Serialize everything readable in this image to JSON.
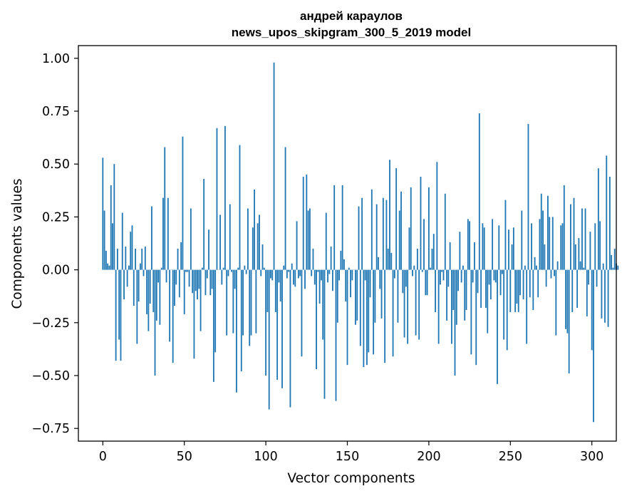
{
  "chart_data": {
    "type": "bar",
    "title_line1": "андрей караулов",
    "title_line2": "news_upos_skipgram_300_5_2019 model",
    "xlabel": "Vector components",
    "ylabel": "Components values",
    "xlim": [
      -15,
      315
    ],
    "ylim": [
      -0.81,
      1.06
    ],
    "xticks": [
      0,
      50,
      100,
      150,
      200,
      250,
      300
    ],
    "xtick_labels": [
      "0",
      "50",
      "100",
      "150",
      "200",
      "250",
      "300"
    ],
    "yticks": [
      -0.75,
      -0.5,
      -0.25,
      0.0,
      0.25,
      0.5,
      0.75,
      1.0
    ],
    "ytick_labels": [
      "−0.75",
      "−0.50",
      "−0.25",
      "0.00",
      "0.25",
      "0.50",
      "0.75",
      "1.00"
    ],
    "grid": false,
    "bar_color": "#1f77b4",
    "values": [
      0.53,
      0.28,
      0.09,
      0.03,
      0.02,
      0.4,
      0.22,
      0.5,
      -0.43,
      0.1,
      -0.33,
      -0.43,
      0.27,
      -0.14,
      0.11,
      -0.08,
      0.02,
      0.18,
      0.21,
      -0.17,
      0.1,
      -0.35,
      -0.15,
      0.03,
      0.1,
      -0.03,
      0.11,
      -0.21,
      -0.29,
      -0.16,
      0.3,
      -0.2,
      -0.5,
      -0.24,
      -0.06,
      -0.26,
      0.01,
      0.34,
      0.58,
      -0.06,
      0.34,
      -0.34,
      0.0,
      -0.44,
      -0.17,
      -0.07,
      0.1,
      -0.13,
      0.13,
      0.63,
      -0.21,
      -0.01,
      -0.01,
      -0.08,
      0.29,
      -0.11,
      -0.42,
      -0.1,
      -0.14,
      -0.09,
      -0.29,
      0.01,
      0.43,
      -0.12,
      -0.04,
      0.19,
      -0.12,
      -0.09,
      -0.53,
      -0.39,
      0.67,
      0.0,
      0.26,
      -0.07,
      0.01,
      0.68,
      -0.31,
      -0.03,
      0.31,
      -0.01,
      -0.3,
      -0.09,
      -0.58,
      0.01,
      0.59,
      -0.48,
      -0.31,
      0.02,
      -0.02,
      0.29,
      -0.36,
      -0.31,
      0.2,
      0.38,
      -0.3,
      0.22,
      0.26,
      -0.03,
      0.12,
      0.01,
      -0.5,
      -0.2,
      -0.66,
      -0.04,
      -0.05,
      0.98,
      -0.2,
      -0.52,
      -0.06,
      -0.15,
      -0.56,
      0.02,
      0.58,
      -0.04,
      -0.01,
      -0.65,
      0.03,
      -0.07,
      -0.08,
      0.23,
      -0.04,
      -0.03,
      -0.41,
      0.44,
      -0.09,
      0.45,
      0.28,
      0.29,
      -0.03,
      0.1,
      -0.07,
      -0.47,
      -0.01,
      -0.16,
      -0.05,
      -0.33,
      -0.61,
      0.27,
      -0.06,
      -0.02,
      0.11,
      -0.1,
      0.4,
      -0.62,
      -0.25,
      -0.05,
      0.09,
      0.4,
      0.05,
      -0.15,
      -0.45,
      0.01,
      -0.13,
      -0.05,
      0.0,
      -0.26,
      -0.24,
      0.3,
      -0.36,
      0.34,
      -0.46,
      -0.05,
      -0.45,
      -0.39,
      -0.13,
      0.38,
      -0.4,
      -0.25,
      0.31,
      0.06,
      -0.09,
      -0.23,
      0.34,
      -0.44,
      0.33,
      0.1,
      0.52,
      0.08,
      -0.41,
      -0.04,
      0.48,
      -0.25,
      0.28,
      0.37,
      -0.11,
      -0.32,
      -0.08,
      -0.35,
      0.2,
      0.39,
      -0.03,
      0.02,
      -0.31,
      0.1,
      -0.33,
      0.44,
      -0.01,
      0.24,
      -0.12,
      -0.12,
      0.39,
      0.01,
      0.1,
      0.17,
      -0.2,
      0.51,
      -0.35,
      -0.07,
      -0.01,
      -0.05,
      0.36,
      -0.24,
      -0.08,
      0.13,
      -0.35,
      -0.19,
      -0.5,
      -0.26,
      -0.1,
      0.18,
      -0.06,
      0.02,
      -0.24,
      -0.19,
      0.24,
      0.23,
      -0.4,
      -0.06,
      0.13,
      -0.45,
      -0.11,
      0.74,
      -0.18,
      0.22,
      0.2,
      -0.18,
      -0.3,
      -0.07,
      -0.14,
      0.24,
      -0.05,
      -0.06,
      -0.54,
      0.21,
      -0.12,
      -0.02,
      -0.33,
      0.33,
      -0.38,
      0.19,
      -0.2,
      0.12,
      0.2,
      -0.2,
      -0.16,
      -0.2,
      -0.12,
      0.28,
      -0.14,
      0.02,
      -0.35,
      0.69,
      -0.13,
      0.22,
      -0.19,
      0.06,
      0.02,
      -0.13,
      0.24,
      0.36,
      0.28,
      0.12,
      -0.08,
      0.35,
      0.25,
      -0.04,
      0.25,
      -0.03,
      -0.31,
      0.04,
      0.0,
      0.21,
      0.22,
      0.4,
      -0.28,
      -0.3,
      -0.49,
      0.31,
      -0.2,
      0.34,
      0.12,
      -0.18,
      0.15,
      0.04,
      0.29,
      0.01,
      0.29,
      -0.22,
      -0.07,
      0.18,
      -0.38,
      -0.72,
      0.22,
      -0.08,
      0.48,
      0.23,
      -0.23,
      0.03,
      -0.25,
      0.54,
      -0.27,
      0.44,
      0.07,
      0.01,
      0.1,
      0.03,
      0.02
    ]
  }
}
